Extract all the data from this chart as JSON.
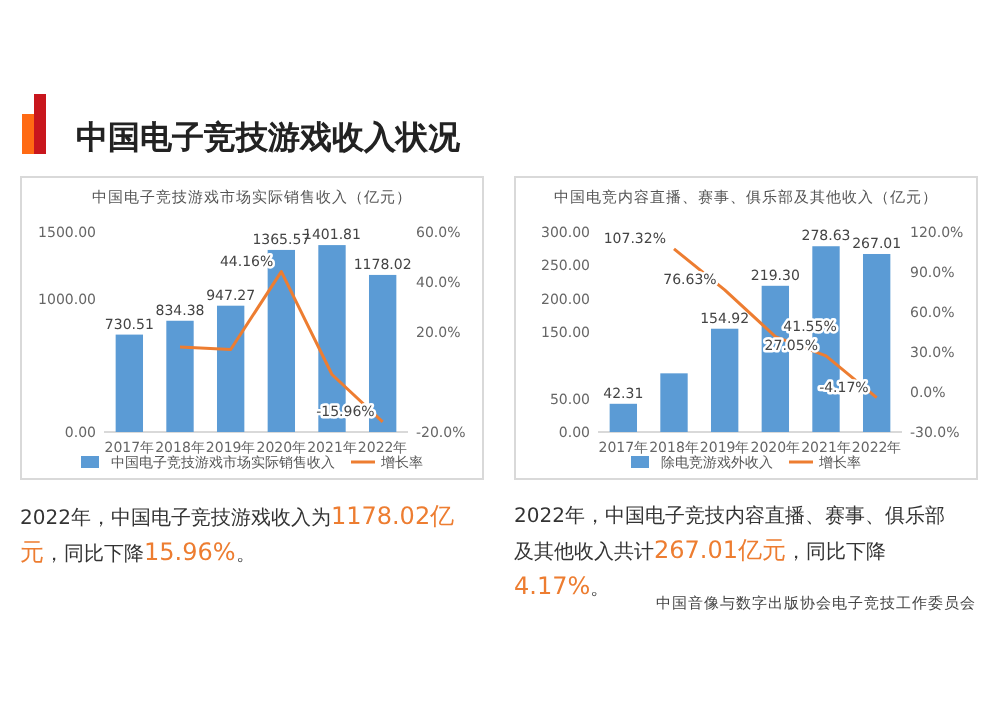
{
  "chart_data": [
    {
      "type": "other",
      "title": "中国电子竞技游戏收入状况",
      "annotations": [
        "中国音像与数字出版协会电子竞技工作委员会"
      ]
    },
    {
      "type": "bar",
      "title": "中国电子竞技游戏市场实际销售收入（亿元）",
      "categories": [
        "2017年",
        "2018年",
        "2019年",
        "2020年",
        "2021年",
        "2022年"
      ],
      "ylim": [
        0,
        1500
      ],
      "yticks": [
        {
          "value": 0,
          "label": "0.00"
        },
        {
          "value": 1000,
          "label": "1000.00"
        },
        {
          "value": 1500,
          "label": "1500.00"
        }
      ],
      "y2lim": [
        -20,
        60
      ],
      "y2ticks": [
        {
          "value": -20,
          "label": "-20.0%"
        },
        {
          "value": 20,
          "label": "20.0%"
        },
        {
          "value": 40,
          "label": "40.0%"
        },
        {
          "value": 60,
          "label": "60.0%"
        }
      ],
      "legend": "bottom",
      "annotations": [
        "2022年，中国电子竞技游戏收入为1178.02亿元，同比下降15.96%。"
      ],
      "series": [
        {
          "name": "中国电子竞技游戏市场实际销售收入",
          "type": "bar",
          "color": "#5b9bd5",
          "values": [
            730.51,
            834.38,
            947.27,
            1365.57,
            1401.81,
            1178.02
          ],
          "value_labels": [
            "730.51",
            "834.38",
            "947.27",
            "1365.57",
            "1401.81",
            "1178.02"
          ]
        },
        {
          "name": "增长率",
          "type": "line",
          "axis": "y2",
          "color": "#ed7d31",
          "values": [
            null,
            14,
            13,
            44.16,
            3,
            -15.96
          ],
          "value_labels": [
            null,
            null,
            null,
            "44.16%",
            null,
            "-15.96%"
          ]
        }
      ]
    },
    {
      "type": "bar",
      "title": "中国电竞内容直播、赛事、俱乐部及其他收入（亿元）",
      "categories": [
        "2017年",
        "2018年",
        "2019年",
        "2020年",
        "2021年",
        "2022年"
      ],
      "ylim": [
        0,
        300
      ],
      "yticks": [
        {
          "value": 0,
          "label": "0.00"
        },
        {
          "value": 50,
          "label": "50.00"
        },
        {
          "value": 150,
          "label": "150.00"
        },
        {
          "value": 200,
          "label": "200.00"
        },
        {
          "value": 250,
          "label": "250.00"
        },
        {
          "value": 300,
          "label": "300.00"
        }
      ],
      "y2lim": [
        -30,
        120
      ],
      "y2ticks": [
        {
          "value": -30,
          "label": "-30.0%"
        },
        {
          "value": 0,
          "label": "0.0%"
        },
        {
          "value": 30,
          "label": "30.0%"
        },
        {
          "value": 60,
          "label": "60.0%"
        },
        {
          "value": 90,
          "label": "90.0%"
        },
        {
          "value": 120,
          "label": "120.0%"
        }
      ],
      "legend": "bottom",
      "annotations": [
        "2022年，中国电子竞技内容直播、赛事、俱乐部及其他收入共计267.01亿元，同比下降4.17%。"
      ],
      "series": [
        {
          "name": "除电竞游戏外收入",
          "type": "bar",
          "color": "#5b9bd5",
          "values": [
            42.31,
            88,
            154.92,
            219.3,
            278.63,
            267.01
          ],
          "value_labels": [
            "42.31",
            null,
            "154.92",
            "219.30",
            "278.63",
            "267.01"
          ]
        },
        {
          "name": "增长率",
          "type": "line",
          "axis": "y2",
          "color": "#ed7d31",
          "values": [
            null,
            107.32,
            76.63,
            41.55,
            27.05,
            -4.17
          ],
          "value_labels": [
            null,
            "107.32%",
            "76.63%",
            "41.55%",
            "27.05%",
            "-4.17%"
          ]
        }
      ]
    }
  ]
}
